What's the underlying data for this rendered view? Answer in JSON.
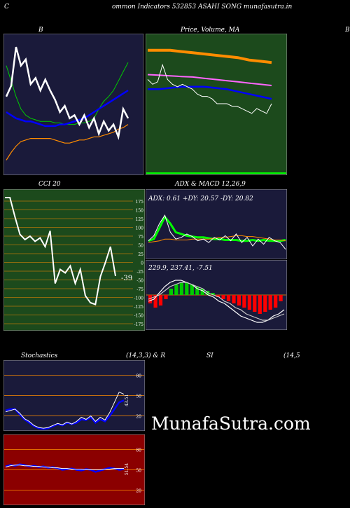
{
  "header": {
    "left_letter": "C",
    "title": "ommon  Indicators 532853 ASAHI SONG munafasutra.in",
    "right_letter": "B"
  },
  "watermark": "MunafaSutra.com",
  "colors": {
    "navy": "#1a1a3a",
    "green_panel": "#1c4a1c",
    "red_panel": "#8b0000",
    "orange": "#ff8c00",
    "blue": "#0000ff",
    "green_line": "#00cc00"
  },
  "chart_data": [
    {
      "id": "bollinger",
      "type": "line",
      "title": "B",
      "series": [
        {
          "color": "#00cc00",
          "values": [
            108,
            98,
            88,
            80,
            76,
            74,
            73,
            72,
            72,
            72,
            71,
            71,
            70,
            70,
            70,
            71,
            71,
            72,
            74,
            80,
            85,
            88,
            92,
            98,
            104,
            110
          ]
        },
        {
          "color": "#0000ff",
          "values": [
            78,
            76,
            74,
            73,
            72,
            72,
            71,
            70,
            69,
            69,
            69,
            70,
            70,
            71,
            72,
            73,
            74,
            76,
            78,
            80,
            82,
            84,
            86,
            88,
            90,
            92
          ]
        },
        {
          "color": "#ff8c00",
          "values": [
            47,
            52,
            56,
            59,
            60,
            61,
            61,
            61,
            61,
            61,
            60,
            59,
            58,
            58,
            59,
            60,
            60,
            61,
            62,
            62,
            63,
            64,
            65,
            67,
            68,
            70
          ]
        },
        {
          "color": "#ffffff",
          "values": [
            88,
            95,
            120,
            108,
            112,
            96,
            100,
            92,
            99,
            92,
            86,
            78,
            82,
            74,
            76,
            70,
            76,
            68,
            74,
            64,
            72,
            66,
            70,
            62,
            80,
            74
          ]
        }
      ]
    },
    {
      "id": "price-ma",
      "type": "line",
      "title": "Price,  Volume,  MA",
      "series": [
        {
          "color": "#ff8c00",
          "values": [
            108,
            108,
            108,
            107.5,
            107,
            106.5,
            106,
            105.5,
            105,
            104,
            103.5,
            103
          ]
        },
        {
          "color": "#ff66ff",
          "values": [
            98,
            97.8,
            97.5,
            97.2,
            97,
            96.5,
            96,
            95.5,
            95,
            94.5,
            94,
            93.5
          ]
        },
        {
          "color": "#0000ff",
          "values": [
            92,
            92,
            92.5,
            93,
            93,
            93,
            92.5,
            92,
            91,
            90,
            89,
            88
          ]
        },
        {
          "color": "#ffffff",
          "values": [
            96,
            94,
            95,
            102,
            96,
            94,
            93,
            94,
            93,
            92,
            90,
            89,
            89,
            88,
            86,
            86,
            86,
            85,
            85,
            84,
            83,
            82,
            84,
            83,
            82,
            86
          ]
        }
      ]
    },
    {
      "id": "cci",
      "type": "line",
      "title": "CCI 20",
      "ylim": [
        -175,
        175
      ],
      "yticks": [
        "175",
        "150",
        "125",
        "100",
        "75",
        "50",
        "25",
        "0",
        "-25",
        "-50",
        "-75",
        "-100",
        "-125",
        "-150",
        "-175"
      ],
      "last_label": "-39",
      "values": [
        185,
        185,
        130,
        80,
        65,
        75,
        60,
        70,
        45,
        90,
        -60,
        -20,
        -30,
        -10,
        -60,
        -20,
        -95,
        -115,
        -120,
        -40,
        0,
        45,
        -39
      ]
    },
    {
      "id": "adx",
      "type": "line",
      "title": "ADX  & MACD 12,26,9",
      "label": "ADX: 0.61 +DY: 20.57 -DY: 20.82",
      "series": [
        {
          "color": "#00ff00",
          "values": [
            20,
            22,
            35,
            48,
            40,
            30,
            28,
            26,
            25,
            24,
            24,
            23,
            22,
            22,
            21,
            21,
            21,
            20,
            20,
            21,
            20,
            21,
            20,
            20,
            20,
            21
          ]
        },
        {
          "color": "#ff8c00",
          "values": [
            18,
            19,
            20,
            22,
            22,
            21,
            21,
            21,
            22,
            22,
            22,
            22,
            23,
            24,
            24,
            25,
            26,
            26,
            25,
            25,
            24,
            23,
            22,
            21,
            21,
            20
          ]
        },
        {
          "color": "#ffffff",
          "values": [
            20,
            26,
            40,
            50,
            30,
            22,
            24,
            28,
            25,
            20,
            22,
            18,
            24,
            21,
            26,
            20,
            28,
            18,
            24,
            14,
            22,
            16,
            24,
            20,
            18,
            10
          ]
        }
      ]
    },
    {
      "id": "macd",
      "type": "bar",
      "label": "229.9,  237.41,  -7.51",
      "histogram": [
        -0.4,
        -0.6,
        -0.5,
        -0.2,
        0.3,
        0.5,
        0.6,
        0.6,
        0.5,
        0.4,
        0.3,
        0.2,
        0.1,
        -0.1,
        -0.2,
        -0.3,
        -0.4,
        -0.5,
        -0.6,
        -0.7,
        -0.8,
        -0.9,
        -0.8,
        -0.7,
        -0.6,
        -0.3
      ],
      "series": [
        {
          "color": "#ffffff",
          "values": [
            -0.3,
            -0.2,
            0.1,
            0.4,
            0.6,
            0.7,
            0.7,
            0.6,
            0.5,
            0.3,
            0.2,
            0.0,
            -0.1,
            -0.3,
            -0.4,
            -0.6,
            -0.8,
            -1.0,
            -1.1,
            -1.2,
            -1.3,
            -1.3,
            -1.2,
            -1.0,
            -0.9,
            -0.7
          ]
        },
        {
          "color": "#cccccc",
          "values": [
            -0.2,
            -0.1,
            0.0,
            0.2,
            0.4,
            0.5,
            0.6,
            0.6,
            0.5,
            0.4,
            0.3,
            0.1,
            0.0,
            -0.1,
            -0.3,
            -0.4,
            -0.6,
            -0.7,
            -0.9,
            -1.0,
            -1.1,
            -1.2,
            -1.2,
            -1.1,
            -1.0,
            -0.9
          ]
        }
      ]
    },
    {
      "id": "stochastic",
      "type": "line",
      "title_left": "Stochastics",
      "title_mid": "(14,3,3) & R",
      "yticks": [
        "80",
        "50",
        "20"
      ],
      "last_label": "43.51",
      "series": [
        {
          "color": "#0000ff",
          "values": [
            28,
            30,
            30,
            22,
            15,
            10,
            5,
            2,
            1,
            2,
            5,
            8,
            6,
            10,
            8,
            10,
            15,
            14,
            18,
            10,
            15,
            12,
            20,
            30,
            40,
            43
          ]
        },
        {
          "color": "#ffffff",
          "values": [
            26,
            28,
            30,
            24,
            16,
            12,
            6,
            3,
            2,
            3,
            6,
            9,
            7,
            11,
            8,
            12,
            18,
            15,
            20,
            12,
            18,
            14,
            25,
            40,
            55,
            52
          ]
        }
      ]
    },
    {
      "id": "rsi",
      "type": "line",
      "title_left": "SI",
      "title_right": "(14,5",
      "yticks": [
        "80",
        "50",
        "20"
      ],
      "last_label": "51.54",
      "series": [
        {
          "color": "#0000ff",
          "values": [
            55,
            57,
            56,
            58,
            57,
            55,
            56,
            54,
            55,
            53,
            54,
            52,
            50,
            51,
            52,
            50,
            49,
            51,
            50,
            47,
            49,
            51,
            53,
            52,
            50,
            51
          ]
        },
        {
          "color": "#ffffff",
          "values": [
            54,
            56,
            57,
            57,
            56,
            56,
            55,
            55,
            54,
            54,
            53,
            53,
            52,
            52,
            51,
            51,
            51,
            50,
            50,
            50,
            50,
            51,
            51,
            52,
            52,
            52
          ]
        }
      ]
    }
  ]
}
